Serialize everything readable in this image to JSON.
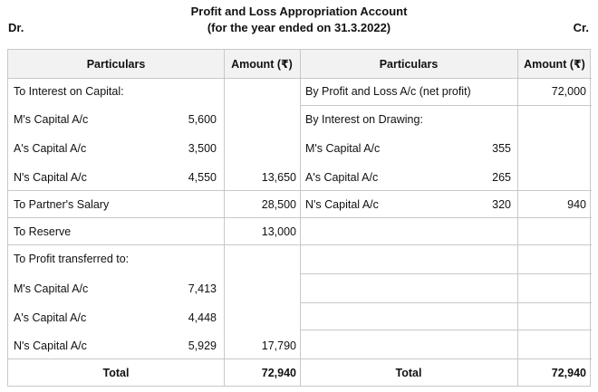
{
  "header": {
    "title": "Profit and Loss Appropriation Account",
    "subtitle": "(for the year ended on 31.3.2022)",
    "dr": "Dr.",
    "cr": "Cr."
  },
  "columns": {
    "particulars_left": "Particulars",
    "amount_left": "Amount (₹)",
    "particulars_right": "Particulars",
    "amount_right": "Amount (₹)"
  },
  "debit": {
    "interest_heading": "To Interest on Capital:",
    "m_int": {
      "label": "M's Capital A/c",
      "value": "5,600"
    },
    "a_int": {
      "label": "A's Capital A/c",
      "value": "3,500"
    },
    "n_int": {
      "label": "N's Capital A/c",
      "value": "4,550",
      "total": "13,650"
    },
    "salary": {
      "label": "To Partner's Salary",
      "amount": "28,500"
    },
    "reserve": {
      "label": "To Reserve",
      "amount": "13,000"
    },
    "profit_heading": "To Profit transferred to:",
    "m_profit": {
      "label": "M's Capital A/c",
      "value": "7,413"
    },
    "a_profit": {
      "label": "A's Capital A/c",
      "value": "4,448"
    },
    "n_profit": {
      "label": "N's Capital A/c",
      "value": "5,929",
      "total": "17,790"
    },
    "total_label": "Total",
    "total_amount": "72,940"
  },
  "credit": {
    "net_profit": {
      "label": "By Profit and Loss A/c (net profit)",
      "amount": "72,000"
    },
    "drawing_heading": "By Interest on Drawing:",
    "m_draw": {
      "label": "M's Capital A/c",
      "value": "355"
    },
    "a_draw": {
      "label": "A's Capital A/c",
      "value": "265"
    },
    "n_draw": {
      "label": "N's Capital A/c",
      "value": "320",
      "total": "940"
    },
    "total_label": "Total",
    "total_amount": "72,940"
  }
}
